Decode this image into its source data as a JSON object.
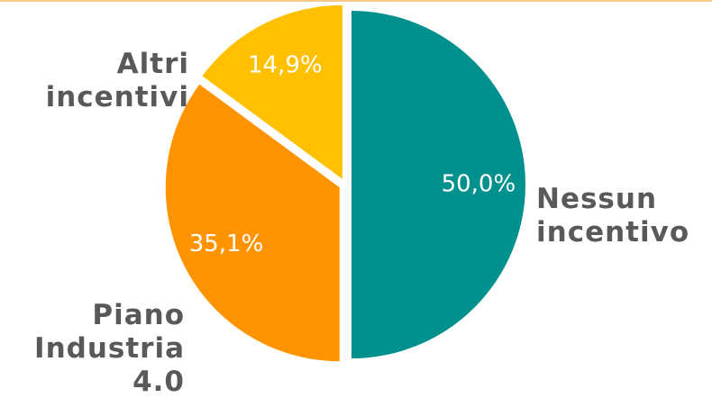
{
  "chart_data": {
    "type": "pie",
    "categories": [
      "Nessun incentivo",
      "Piano Industria 4.0",
      "Altri incentivi"
    ],
    "values": [
      50.0,
      35.1,
      14.9
    ],
    "value_labels": [
      "50,0%",
      "35,1%",
      "14,9%"
    ],
    "colors": [
      "#00918f",
      "#ff9400",
      "#ffc000"
    ]
  }
}
